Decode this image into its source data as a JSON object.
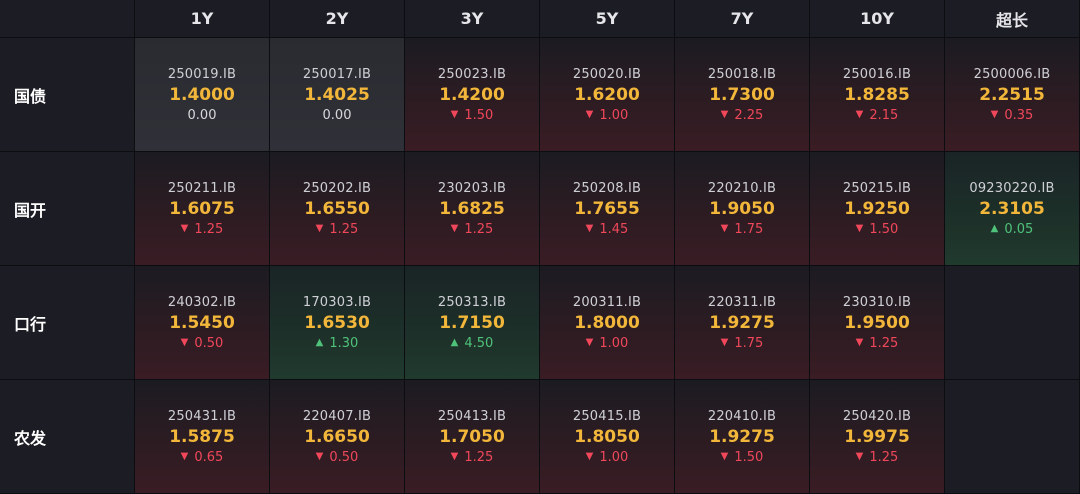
{
  "headers": [
    "1Y",
    "2Y",
    "3Y",
    "5Y",
    "7Y",
    "10Y",
    "超长"
  ],
  "rows": [
    {
      "label": "国债",
      "cells": [
        {
          "code": "250019.IB",
          "yield": "1.4000",
          "change": "0.00",
          "dir": "flat"
        },
        {
          "code": "250017.IB",
          "yield": "1.4025",
          "change": "0.00",
          "dir": "flat"
        },
        {
          "code": "250023.IB",
          "yield": "1.4200",
          "change": "1.50",
          "dir": "down"
        },
        {
          "code": "250020.IB",
          "yield": "1.6200",
          "change": "1.00",
          "dir": "down"
        },
        {
          "code": "250018.IB",
          "yield": "1.7300",
          "change": "2.25",
          "dir": "down"
        },
        {
          "code": "250016.IB",
          "yield": "1.8285",
          "change": "2.15",
          "dir": "down"
        },
        {
          "code": "2500006.IB",
          "yield": "2.2515",
          "change": "0.35",
          "dir": "down"
        }
      ]
    },
    {
      "label": "国开",
      "cells": [
        {
          "code": "250211.IB",
          "yield": "1.6075",
          "change": "1.25",
          "dir": "down"
        },
        {
          "code": "250202.IB",
          "yield": "1.6550",
          "change": "1.25",
          "dir": "down"
        },
        {
          "code": "230203.IB",
          "yield": "1.6825",
          "change": "1.25",
          "dir": "down"
        },
        {
          "code": "250208.IB",
          "yield": "1.7655",
          "change": "1.45",
          "dir": "down"
        },
        {
          "code": "220210.IB",
          "yield": "1.9050",
          "change": "1.75",
          "dir": "down"
        },
        {
          "code": "250215.IB",
          "yield": "1.9250",
          "change": "1.50",
          "dir": "down"
        },
        {
          "code": "09230220.IB",
          "yield": "2.3105",
          "change": "0.05",
          "dir": "up"
        }
      ]
    },
    {
      "label": "口行",
      "cells": [
        {
          "code": "240302.IB",
          "yield": "1.5450",
          "change": "0.50",
          "dir": "down"
        },
        {
          "code": "170303.IB",
          "yield": "1.6530",
          "change": "1.30",
          "dir": "up"
        },
        {
          "code": "250313.IB",
          "yield": "1.7150",
          "change": "4.50",
          "dir": "up"
        },
        {
          "code": "200311.IB",
          "yield": "1.8000",
          "change": "1.00",
          "dir": "down"
        },
        {
          "code": "220311.IB",
          "yield": "1.9275",
          "change": "1.75",
          "dir": "down"
        },
        {
          "code": "230310.IB",
          "yield": "1.9500",
          "change": "1.25",
          "dir": "down"
        },
        null
      ]
    },
    {
      "label": "农发",
      "cells": [
        {
          "code": "250431.IB",
          "yield": "1.5875",
          "change": "0.65",
          "dir": "down"
        },
        {
          "code": "220407.IB",
          "yield": "1.6650",
          "change": "0.50",
          "dir": "down"
        },
        {
          "code": "250413.IB",
          "yield": "1.7050",
          "change": "1.25",
          "dir": "down"
        },
        {
          "code": "250415.IB",
          "yield": "1.8050",
          "change": "1.00",
          "dir": "down"
        },
        {
          "code": "220410.IB",
          "yield": "1.9275",
          "change": "1.50",
          "dir": "down"
        },
        {
          "code": "250420.IB",
          "yield": "1.9975",
          "change": "1.25",
          "dir": "down"
        },
        null
      ]
    }
  ],
  "icons": {
    "down": "triangle-down-icon",
    "up": "triangle-up-icon"
  },
  "colors": {
    "yield": "#f2b73a",
    "down": "#f0475a",
    "up": "#4fc27a",
    "background": "#15161c"
  }
}
